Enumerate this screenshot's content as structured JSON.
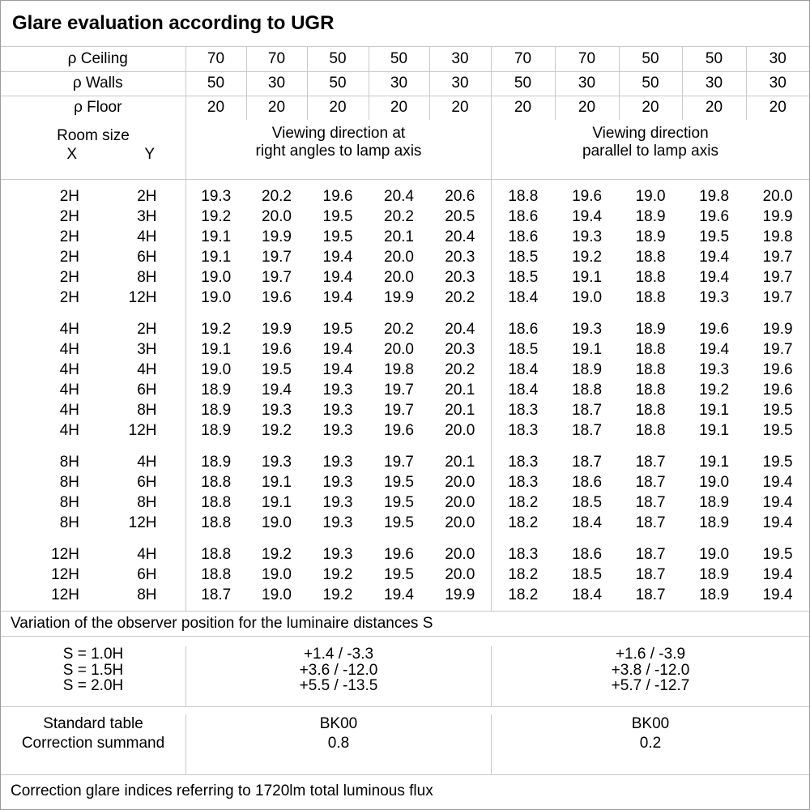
{
  "title": "Glare evaluation according to UGR",
  "colors": {
    "grid_line": "#c9c9c9",
    "outer_border": "#9b9b9b",
    "text": "#000000",
    "background": "#ffffff"
  },
  "reflectance_header": {
    "rows": [
      {
        "label": "ρ Ceiling",
        "values": [
          "70",
          "70",
          "50",
          "50",
          "30",
          "70",
          "70",
          "50",
          "50",
          "30"
        ]
      },
      {
        "label": "ρ Walls",
        "values": [
          "50",
          "30",
          "50",
          "30",
          "30",
          "50",
          "30",
          "50",
          "30",
          "30"
        ]
      },
      {
        "label": "ρ Floor",
        "values": [
          "20",
          "20",
          "20",
          "20",
          "20",
          "20",
          "20",
          "20",
          "20",
          "20"
        ]
      }
    ]
  },
  "column_header": {
    "room_size_label": "Room size",
    "x_label": "X",
    "y_label": "Y",
    "groups": [
      {
        "line1": "Viewing direction at",
        "line2": "right angles to lamp axis"
      },
      {
        "line1": "Viewing direction",
        "line2": "parallel to lamp axis"
      }
    ]
  },
  "ugr_table": {
    "blocks": [
      {
        "rows": [
          {
            "x": "2H",
            "y": "2H",
            "values": [
              "19.3",
              "20.2",
              "19.6",
              "20.4",
              "20.6",
              "18.8",
              "19.6",
              "19.0",
              "19.8",
              "20.0"
            ]
          },
          {
            "x": "2H",
            "y": "3H",
            "values": [
              "19.2",
              "20.0",
              "19.5",
              "20.2",
              "20.5",
              "18.6",
              "19.4",
              "18.9",
              "19.6",
              "19.9"
            ]
          },
          {
            "x": "2H",
            "y": "4H",
            "values": [
              "19.1",
              "19.9",
              "19.5",
              "20.1",
              "20.4",
              "18.6",
              "19.3",
              "18.9",
              "19.5",
              "19.8"
            ]
          },
          {
            "x": "2H",
            "y": "6H",
            "values": [
              "19.1",
              "19.7",
              "19.4",
              "20.0",
              "20.3",
              "18.5",
              "19.2",
              "18.8",
              "19.4",
              "19.7"
            ]
          },
          {
            "x": "2H",
            "y": "8H",
            "values": [
              "19.0",
              "19.7",
              "19.4",
              "20.0",
              "20.3",
              "18.5",
              "19.1",
              "18.8",
              "19.4",
              "19.7"
            ]
          },
          {
            "x": "2H",
            "y": "12H",
            "values": [
              "19.0",
              "19.6",
              "19.4",
              "19.9",
              "20.2",
              "18.4",
              "19.0",
              "18.8",
              "19.3",
              "19.7"
            ]
          }
        ]
      },
      {
        "rows": [
          {
            "x": "4H",
            "y": "2H",
            "values": [
              "19.2",
              "19.9",
              "19.5",
              "20.2",
              "20.4",
              "18.6",
              "19.3",
              "18.9",
              "19.6",
              "19.9"
            ]
          },
          {
            "x": "4H",
            "y": "3H",
            "values": [
              "19.1",
              "19.6",
              "19.4",
              "20.0",
              "20.3",
              "18.5",
              "19.1",
              "18.8",
              "19.4",
              "19.7"
            ]
          },
          {
            "x": "4H",
            "y": "4H",
            "values": [
              "19.0",
              "19.5",
              "19.4",
              "19.8",
              "20.2",
              "18.4",
              "18.9",
              "18.8",
              "19.3",
              "19.6"
            ]
          },
          {
            "x": "4H",
            "y": "6H",
            "values": [
              "18.9",
              "19.4",
              "19.3",
              "19.7",
              "20.1",
              "18.4",
              "18.8",
              "18.8",
              "19.2",
              "19.6"
            ]
          },
          {
            "x": "4H",
            "y": "8H",
            "values": [
              "18.9",
              "19.3",
              "19.3",
              "19.7",
              "20.1",
              "18.3",
              "18.7",
              "18.8",
              "19.1",
              "19.5"
            ]
          },
          {
            "x": "4H",
            "y": "12H",
            "values": [
              "18.9",
              "19.2",
              "19.3",
              "19.6",
              "20.0",
              "18.3",
              "18.7",
              "18.8",
              "19.1",
              "19.5"
            ]
          }
        ]
      },
      {
        "rows": [
          {
            "x": "8H",
            "y": "4H",
            "values": [
              "18.9",
              "19.3",
              "19.3",
              "19.7",
              "20.1",
              "18.3",
              "18.7",
              "18.7",
              "19.1",
              "19.5"
            ]
          },
          {
            "x": "8H",
            "y": "6H",
            "values": [
              "18.8",
              "19.1",
              "19.3",
              "19.5",
              "20.0",
              "18.3",
              "18.6",
              "18.7",
              "19.0",
              "19.4"
            ]
          },
          {
            "x": "8H",
            "y": "8H",
            "values": [
              "18.8",
              "19.1",
              "19.3",
              "19.5",
              "20.0",
              "18.2",
              "18.5",
              "18.7",
              "18.9",
              "19.4"
            ]
          },
          {
            "x": "8H",
            "y": "12H",
            "values": [
              "18.8",
              "19.0",
              "19.3",
              "19.5",
              "20.0",
              "18.2",
              "18.4",
              "18.7",
              "18.9",
              "19.4"
            ]
          }
        ]
      },
      {
        "rows": [
          {
            "x": "12H",
            "y": "4H",
            "values": [
              "18.8",
              "19.2",
              "19.3",
              "19.6",
              "20.0",
              "18.3",
              "18.6",
              "18.7",
              "19.0",
              "19.5"
            ]
          },
          {
            "x": "12H",
            "y": "6H",
            "values": [
              "18.8",
              "19.0",
              "19.2",
              "19.5",
              "20.0",
              "18.2",
              "18.5",
              "18.7",
              "18.9",
              "19.4"
            ]
          },
          {
            "x": "12H",
            "y": "8H",
            "values": [
              "18.7",
              "19.0",
              "19.2",
              "19.4",
              "19.9",
              "18.2",
              "18.4",
              "18.7",
              "18.9",
              "19.4"
            ]
          }
        ]
      }
    ]
  },
  "variation": {
    "caption": "Variation of the observer position for the luminaire distances S",
    "s_labels": [
      "S = 1.0H",
      "S = 1.5H",
      "S = 2.0H"
    ],
    "right_angle_values": [
      "+1.4 / -3.3",
      "+3.6 / -12.0",
      "+5.5 / -13.5"
    ],
    "parallel_values": [
      "+1.6 / -3.9",
      "+3.8 / -12.0",
      "+5.7 / -12.7"
    ]
  },
  "summary": {
    "row1_label": "Standard table",
    "row2_label": "Correction summand",
    "right_angle": {
      "standard_table": "BK00",
      "correction_summand": "0.8"
    },
    "parallel": {
      "standard_table": "BK00",
      "correction_summand": "0.2"
    }
  },
  "footer": "Correction glare indices referring to 1720lm total luminous flux"
}
